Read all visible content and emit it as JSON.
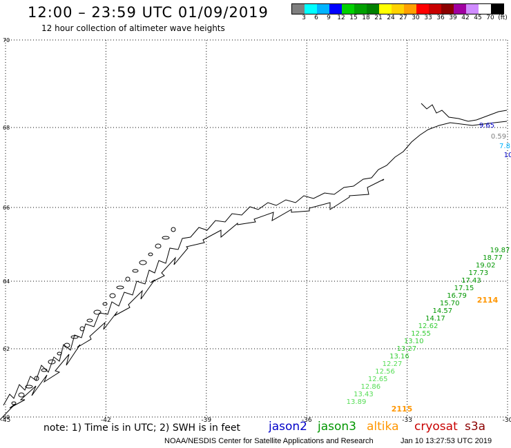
{
  "header": {
    "title": "12:00 – 23:59 UTC 01/09/2019",
    "subtitle": "12 hour collection of altimeter wave heights"
  },
  "colorbar": {
    "colors": [
      "#7f7f7f",
      "#00ffff",
      "#00b4ff",
      "#0000ff",
      "#00d200",
      "#00a000",
      "#008000",
      "#ffff00",
      "#ffd200",
      "#ffa000",
      "#ff0000",
      "#c80000",
      "#8b0000",
      "#a000a0",
      "#d08cff",
      "#ffffff",
      "#000000"
    ],
    "labels": [
      "3",
      "6",
      "9",
      "12",
      "15",
      "18",
      "21",
      "24",
      "27",
      "30",
      "33",
      "36",
      "39",
      "42",
      "45",
      "70",
      "(ft)"
    ]
  },
  "map": {
    "lon_min": -45,
    "lon_max": -30,
    "lat_min": 60,
    "lat_max": 70,
    "lon_ticks": [
      "-45",
      "-42",
      "-39",
      "-36",
      "-33",
      "-30"
    ],
    "lat_ticks": [
      "70",
      "68",
      "66",
      "64",
      "62",
      "60"
    ],
    "grid": "dotted"
  },
  "tracks": {
    "altika_labels": [
      "2114",
      "2115"
    ],
    "jason3_values": [
      "19.87",
      "18.77",
      "19.02",
      "17.73",
      "17.43",
      "17.15",
      "16.79",
      "15.70",
      "14.57",
      "14.17",
      "12.62",
      "12.55",
      "13.10",
      "13.27",
      "13.16",
      "12.27",
      "12.56",
      "12.65",
      "12.86",
      "13.43",
      "13.89"
    ],
    "partial_values": [
      "9.65",
      "0.59",
      "7.8",
      "10"
    ]
  },
  "legend": {
    "jason2": {
      "label": "jason2",
      "color": "#0000c8"
    },
    "jason3": {
      "label": "jason3",
      "color": "#009600"
    },
    "altika": {
      "label": "altika",
      "color": "#ff9600"
    },
    "cryosat": {
      "label": "cryosat",
      "color": "#c80000"
    },
    "s3a": {
      "label": "s3a",
      "color": "#8b0000"
    }
  },
  "footer": {
    "note": "note:  1) Time is in UTC;  2) SWH is in feet",
    "credit": "NOAA/NESDIS Center for Satellite Applications and Research",
    "generated": "Jan 10 13:27:53 UTC 2019"
  }
}
